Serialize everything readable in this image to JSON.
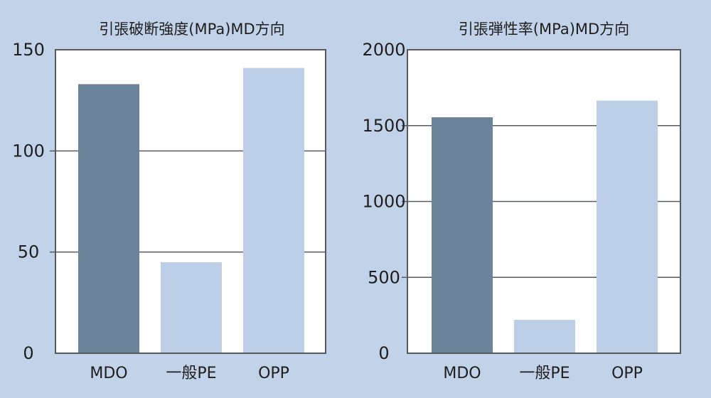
{
  "colors": {
    "background": "#c2d3e9",
    "plot_background": "#ffffff",
    "frame": "#555a60",
    "gridline": "#555a60",
    "bar_mdo": "#6c8499",
    "bar_other": "#bdcfe6"
  },
  "chart_data": [
    {
      "type": "bar",
      "title": "引張破断強度(MPa)MD方向",
      "categories": [
        "MDO",
        "一般PE",
        "OPP"
      ],
      "values": [
        133,
        45,
        141
      ],
      "bar_colors": [
        "#6c8499",
        "#bdcfe6",
        "#bdcfe6"
      ],
      "yticks": [
        "0",
        "50",
        "100",
        "150"
      ],
      "ylim": [
        0,
        150
      ],
      "grid": true
    },
    {
      "type": "bar",
      "title": "引張弾性率(MPa)MD方向",
      "categories": [
        "MDO",
        "一般PE",
        "OPP"
      ],
      "values": [
        1555,
        220,
        1665
      ],
      "bar_colors": [
        "#6c8499",
        "#bdcfe6",
        "#bdcfe6"
      ],
      "yticks": [
        "0",
        "500",
        "1000",
        "1500",
        "2000"
      ],
      "ylim": [
        0,
        2000
      ],
      "grid": true
    }
  ]
}
